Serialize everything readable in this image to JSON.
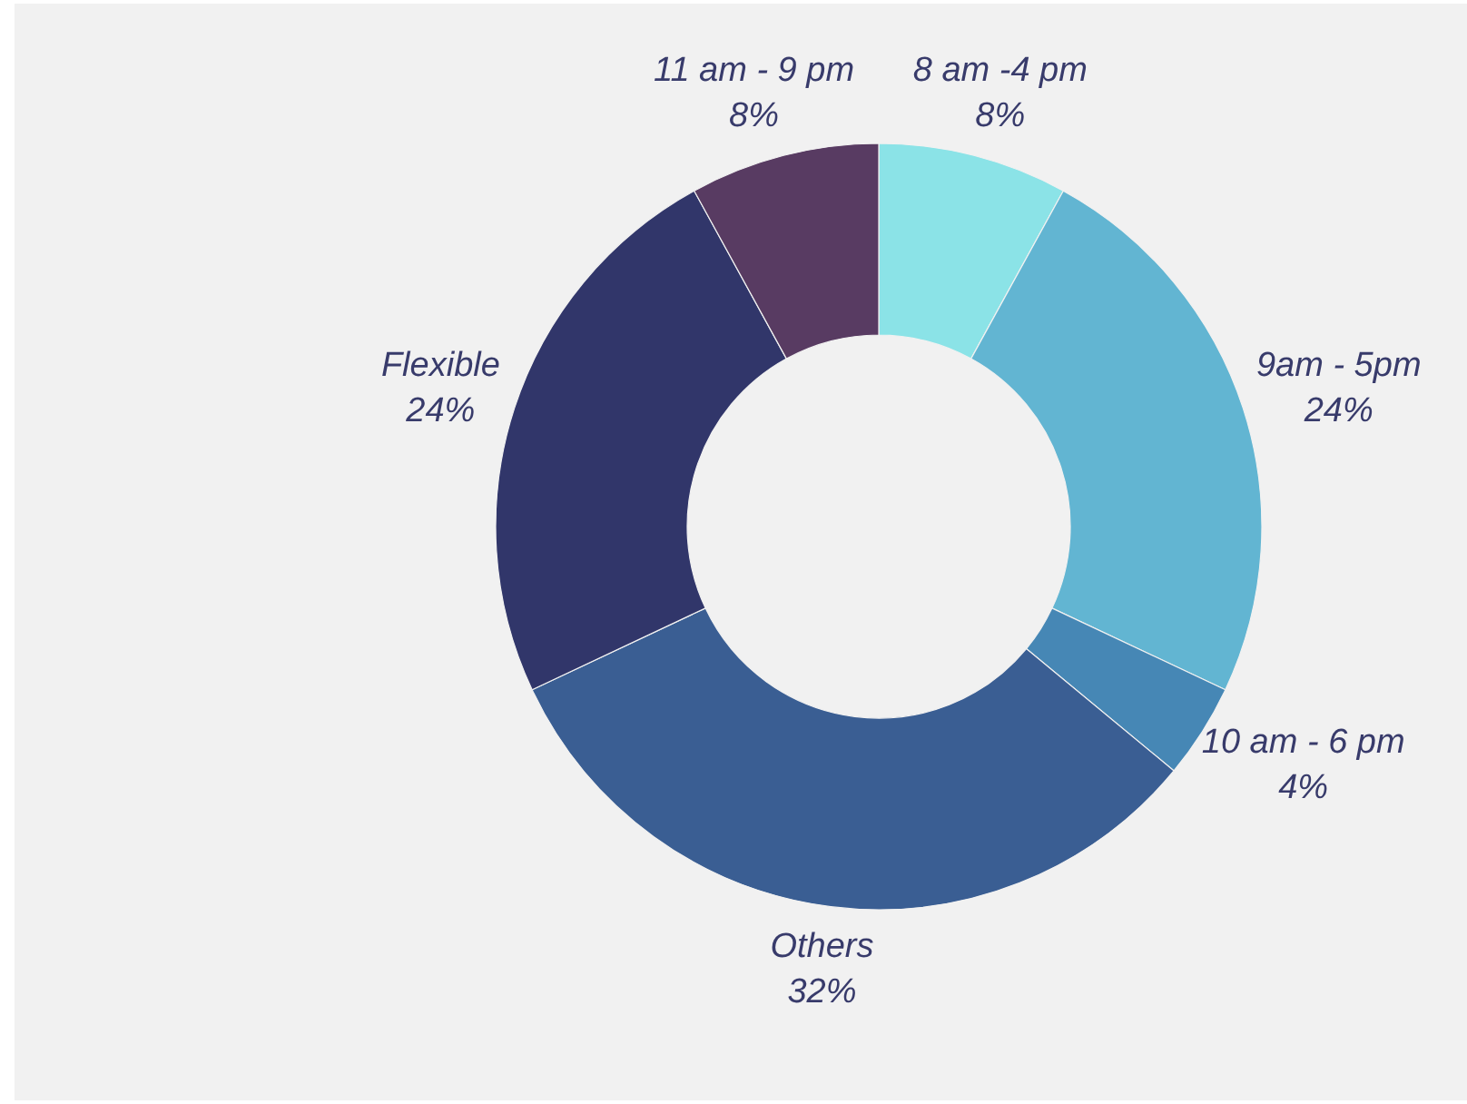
{
  "chart_data": {
    "type": "donut",
    "categories": [
      "8 am -4 pm",
      "9am - 5pm",
      "10 am - 6 pm",
      "Others",
      "Flexible",
      "11 am - 9 pm"
    ],
    "values": [
      8,
      24,
      4,
      32,
      24,
      8
    ],
    "value_labels": [
      "8%",
      "24%",
      "4%",
      "32%",
      "24%",
      "8%"
    ],
    "colors": [
      "#8be3e7",
      "#62b5d2",
      "#4687b5",
      "#3a5e93",
      "#31366a",
      "#583b62"
    ],
    "legend": false
  }
}
